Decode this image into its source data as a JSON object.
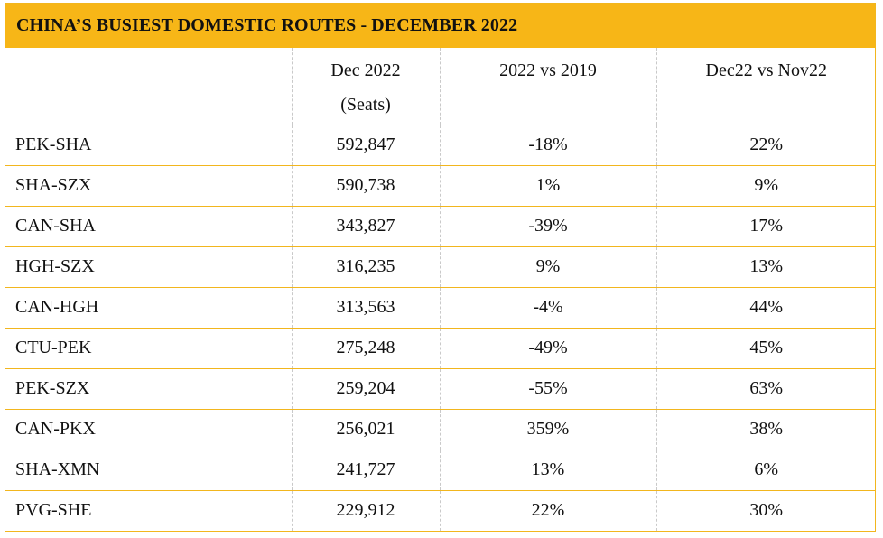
{
  "title": "CHINA’S BUSIEST DOMESTIC ROUTES - DECEMBER 2022",
  "columns": {
    "route": "",
    "seats_line1": "Dec 2022",
    "seats_line2": "(Seats)",
    "vs2019": "2022 vs 2019",
    "vsNov": "Dec22 vs Nov22"
  },
  "rows": [
    {
      "route": "PEK-SHA",
      "seats": "592,847",
      "vs2019": "-18%",
      "vsNov": "22%"
    },
    {
      "route": "SHA-SZX",
      "seats": "590,738",
      "vs2019": "1%",
      "vsNov": "9%"
    },
    {
      "route": "CAN-SHA",
      "seats": "343,827",
      "vs2019": "-39%",
      "vsNov": "17%"
    },
    {
      "route": "HGH-SZX",
      "seats": "316,235",
      "vs2019": "9%",
      "vsNov": "13%"
    },
    {
      "route": "CAN-HGH",
      "seats": "313,563",
      "vs2019": "-4%",
      "vsNov": "44%"
    },
    {
      "route": "CTU-PEK",
      "seats": "275,248",
      "vs2019": "-49%",
      "vsNov": "45%"
    },
    {
      "route": "PEK-SZX",
      "seats": "259,204",
      "vs2019": "-55%",
      "vsNov": "63%"
    },
    {
      "route": "CAN-PKX",
      "seats": "256,021",
      "vs2019": "359%",
      "vsNov": "38%"
    },
    {
      "route": "SHA-XMN",
      "seats": "241,727",
      "vs2019": "13%",
      "vsNov": "6%"
    },
    {
      "route": "PVG-SHE",
      "seats": "229,912",
      "vs2019": "22%",
      "vsNov": "30%"
    }
  ],
  "colors": {
    "header_fill": "#f7b617",
    "border": "#f2b61e",
    "divider": "#c9c9c9"
  }
}
